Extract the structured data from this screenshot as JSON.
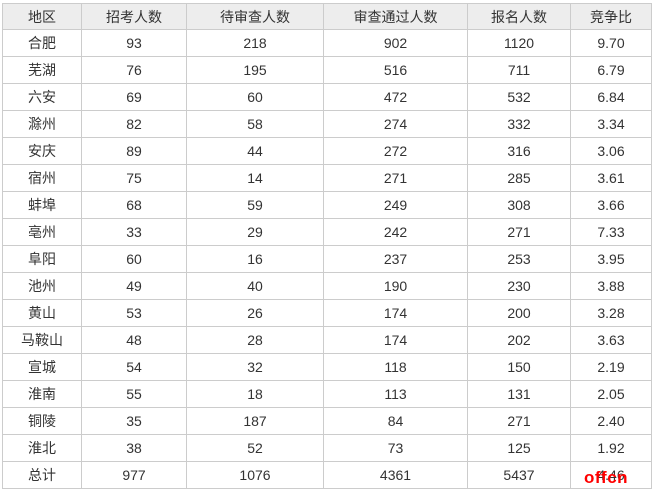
{
  "chart_data": {
    "type": "table",
    "columns": [
      "地区",
      "招考人数",
      "待审查人数",
      "审查通过人数",
      "报名人数",
      "竞争比"
    ],
    "rows": [
      [
        "合肥",
        "93",
        "218",
        "902",
        "1120",
        "9.70"
      ],
      [
        "芜湖",
        "76",
        "195",
        "516",
        "711",
        "6.79"
      ],
      [
        "六安",
        "69",
        "60",
        "472",
        "532",
        "6.84"
      ],
      [
        "滁州",
        "82",
        "58",
        "274",
        "332",
        "3.34"
      ],
      [
        "安庆",
        "89",
        "44",
        "272",
        "316",
        "3.06"
      ],
      [
        "宿州",
        "75",
        "14",
        "271",
        "285",
        "3.61"
      ],
      [
        "蚌埠",
        "68",
        "59",
        "249",
        "308",
        "3.66"
      ],
      [
        "亳州",
        "33",
        "29",
        "242",
        "271",
        "7.33"
      ],
      [
        "阜阳",
        "60",
        "16",
        "237",
        "253",
        "3.95"
      ],
      [
        "池州",
        "49",
        "40",
        "190",
        "230",
        "3.88"
      ],
      [
        "黄山",
        "53",
        "26",
        "174",
        "200",
        "3.28"
      ],
      [
        "马鞍山",
        "48",
        "28",
        "174",
        "202",
        "3.63"
      ],
      [
        "宣城",
        "54",
        "32",
        "118",
        "150",
        "2.19"
      ],
      [
        "淮南",
        "55",
        "18",
        "113",
        "131",
        "2.05"
      ],
      [
        "铜陵",
        "35",
        "187",
        "84",
        "271",
        "2.40"
      ],
      [
        "淮北",
        "38",
        "52",
        "73",
        "125",
        "1.92"
      ],
      [
        "总计",
        "977",
        "1076",
        "4361",
        "5437",
        "4.46"
      ]
    ],
    "total_row_label": "总计"
  },
  "watermark": {
    "text": "offcn",
    "color": "#ff0000"
  },
  "colors": {
    "header_bg": "#ededed",
    "border": "#cccccc",
    "text": "#333333",
    "background": "#ffffff"
  }
}
